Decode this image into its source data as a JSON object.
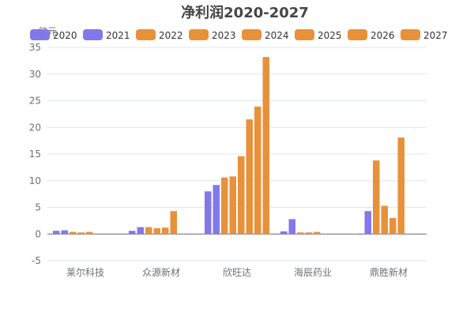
{
  "chart_data": {
    "type": "bar",
    "title": "净利润2020-2027",
    "ylabel": "亿元",
    "xlabel": "",
    "ylim": [
      -5,
      35
    ],
    "yticks": [
      -5,
      0,
      5,
      10,
      15,
      20,
      25,
      30,
      35
    ],
    "grid": true,
    "legend_position": "top",
    "categories": [
      "莱尔科技",
      "众源新材",
      "欣旺达",
      "海辰药业",
      "鼎胜新材"
    ],
    "series": [
      {
        "name": "2020",
        "color": "#8378ea",
        "values": [
          0.6,
          0.6,
          8.0,
          0.5,
          -0.1
        ]
      },
      {
        "name": "2021",
        "color": "#8378ea",
        "values": [
          0.7,
          1.3,
          9.2,
          2.8,
          4.3
        ]
      },
      {
        "name": "2022",
        "color": "#e7913b",
        "values": [
          0.4,
          1.3,
          10.6,
          0.3,
          13.8
        ]
      },
      {
        "name": "2023",
        "color": "#e7913b",
        "values": [
          0.3,
          1.1,
          10.8,
          0.3,
          5.3
        ]
      },
      {
        "name": "2024",
        "color": "#e7913b",
        "values": [
          0.4,
          1.2,
          14.6,
          0.4,
          3.0
        ]
      },
      {
        "name": "2025",
        "color": "#e7913b",
        "values": [
          null,
          4.3,
          21.5,
          null,
          18.1
        ]
      },
      {
        "name": "2026",
        "color": "#e7913b",
        "values": [
          null,
          null,
          23.9,
          null,
          null
        ]
      },
      {
        "name": "2027",
        "color": "#e7913b",
        "values": [
          null,
          null,
          33.2,
          null,
          null
        ]
      }
    ]
  }
}
